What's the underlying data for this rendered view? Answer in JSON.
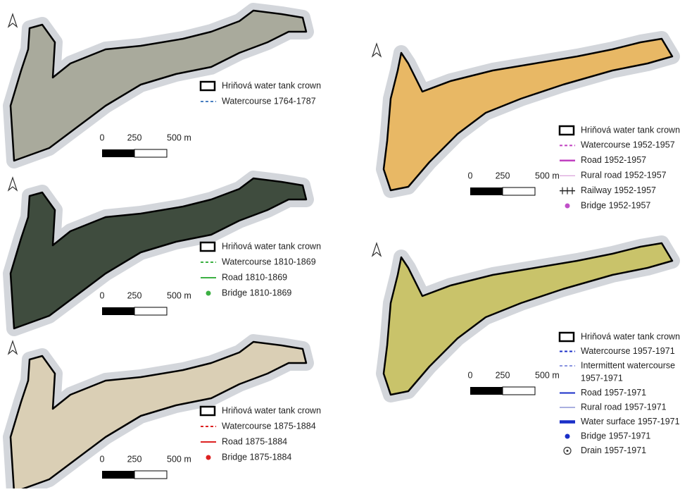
{
  "panels": [
    {
      "legend": [
        "Hriňová water tank crown",
        "Watercourse 1764-1787"
      ],
      "scale": [
        "0",
        "250",
        "500 m"
      ]
    },
    {
      "legend": [
        "Hriňová water tank crown",
        "Watercourse 1810-1869",
        "Road 1810-1869",
        "Bridge 1810-1869"
      ],
      "scale": [
        "0",
        "250",
        "500 m"
      ]
    },
    {
      "legend": [
        "Hriňová water tank crown",
        "Watercourse 1875-1884",
        "Road 1875-1884",
        "Bridge 1875-1884"
      ],
      "scale": [
        "0",
        "250",
        "500 m"
      ]
    },
    {
      "legend": [
        "Hriňová water tank crown",
        "Watercourse 1952-1957",
        "Road 1952-1957",
        "Rural road 1952-1957",
        "Railway 1952-1957",
        "Bridge 1952-1957"
      ],
      "scale": [
        "0",
        "250",
        "500 m"
      ]
    },
    {
      "legend": [
        "Hriňová water tank crown",
        "Watercourse 1957-1971",
        [
          "Intermittent watercourse",
          "1957-1971"
        ],
        "Road 1957-1971",
        "Rural road 1957-1971",
        "Water surface 1957-1971",
        "Bridge 1957-1971",
        "Drain 1957-1971"
      ],
      "scale": [
        "0",
        "250",
        "500 m"
      ]
    }
  ]
}
